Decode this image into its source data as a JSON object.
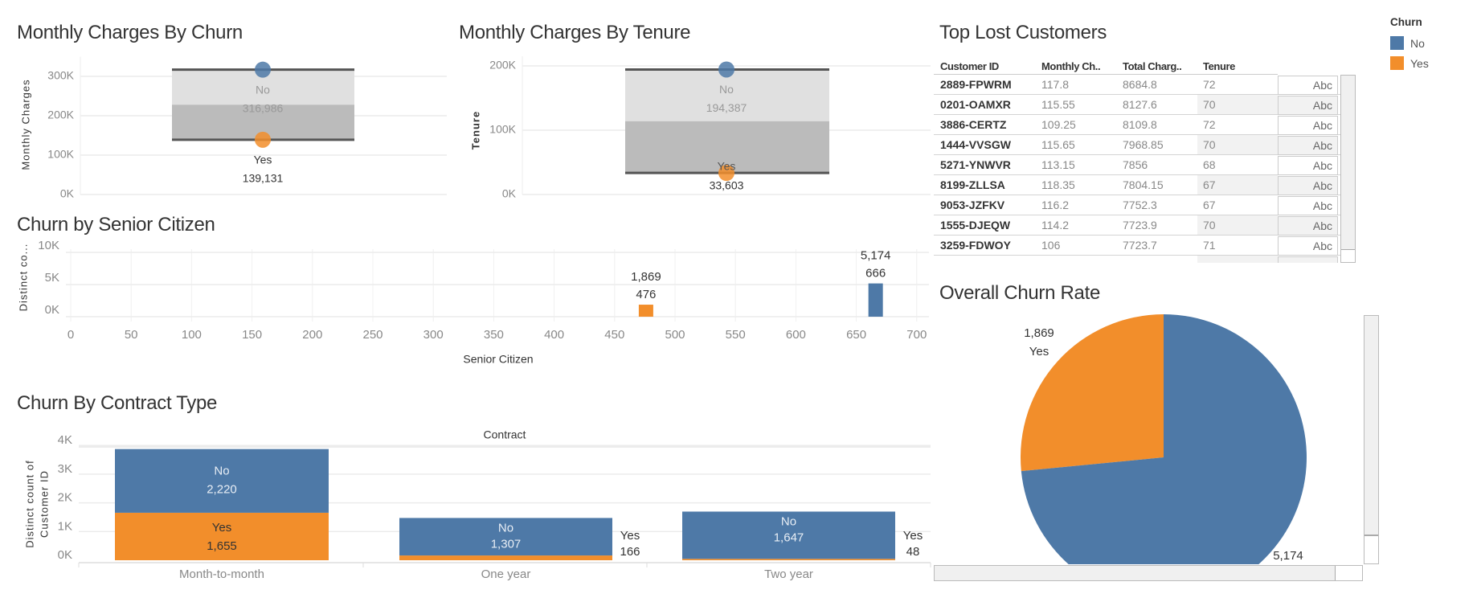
{
  "colors": {
    "no": "#4e79a7",
    "yes": "#f28e2b",
    "band_light": "#e0e0e0",
    "band_dark": "#bbbbbb",
    "band_line": "#555555",
    "grid": "#ececec"
  },
  "legend": {
    "title": "Churn",
    "items": [
      {
        "label": "No",
        "color": "#4e79a7"
      },
      {
        "label": "Yes",
        "color": "#f28e2b"
      }
    ]
  },
  "table": {
    "title": "Top Lost Customers",
    "columns": [
      "Customer ID",
      "Monthly Ch..",
      "Total Charg..",
      "Tenure"
    ],
    "rows": [
      {
        "id": "2889-FPWRM",
        "monthly": "117.8",
        "total": "8684.8",
        "tenure": "72",
        "extra": "Abc"
      },
      {
        "id": "0201-OAMXR",
        "monthly": "115.55",
        "total": "8127.6",
        "tenure": "70",
        "extra": "Abc"
      },
      {
        "id": "3886-CERTZ",
        "monthly": "109.25",
        "total": "8109.8",
        "tenure": "72",
        "extra": "Abc"
      },
      {
        "id": "1444-VVSGW",
        "monthly": "115.65",
        "total": "7968.85",
        "tenure": "70",
        "extra": "Abc"
      },
      {
        "id": "5271-YNWVR",
        "monthly": "113.15",
        "total": "7856",
        "tenure": "68",
        "extra": "Abc"
      },
      {
        "id": "8199-ZLLSA",
        "monthly": "118.35",
        "total": "7804.15",
        "tenure": "67",
        "extra": "Abc"
      },
      {
        "id": "9053-JZFKV",
        "monthly": "116.2",
        "total": "7752.3",
        "tenure": "67",
        "extra": "Abc"
      },
      {
        "id": "1555-DJEQW",
        "monthly": "114.2",
        "total": "7723.9",
        "tenure": "70",
        "extra": "Abc"
      },
      {
        "id": "3259-FDWOY",
        "monthly": "106",
        "total": "7723.7",
        "tenure": "71",
        "extra": "Abc"
      }
    ]
  },
  "chart_data": [
    {
      "type": "scatter",
      "title": "Monthly Charges By Churn",
      "ylabel": "Monthly Charges",
      "ylim": [
        0,
        350000
      ],
      "yticks": [
        {
          "v": 0,
          "label": "0K"
        },
        {
          "v": 100000,
          "label": "100K"
        },
        {
          "v": 200000,
          "label": "200K"
        },
        {
          "v": 300000,
          "label": "300K"
        }
      ],
      "points": [
        {
          "churn": "No",
          "value": 316986,
          "value_label": "316,986"
        },
        {
          "churn": "Yes",
          "value": 139131,
          "value_label": "139,131"
        }
      ],
      "reference_band": {
        "from": 139131,
        "median": 228058,
        "to": 316986
      },
      "grid": true
    },
    {
      "type": "scatter",
      "title": "Monthly Charges By Tenure",
      "ylabel": "Tenure",
      "ylim": [
        0,
        215000
      ],
      "yticks": [
        {
          "v": 0,
          "label": "0K"
        },
        {
          "v": 100000,
          "label": "100K"
        },
        {
          "v": 200000,
          "label": "200K"
        }
      ],
      "points": [
        {
          "churn": "No",
          "value": 194387,
          "value_label": "194,387"
        },
        {
          "churn": "Yes",
          "value": 33603,
          "value_label": "33,603"
        }
      ],
      "reference_band": {
        "from": 33603,
        "median": 113995,
        "to": 194387
      },
      "grid": true
    },
    {
      "type": "bar",
      "title": "Churn by Senior Citizen",
      "xlabel": "Senior Citizen",
      "ylabel": "Distinct co...",
      "xlim": [
        0,
        710
      ],
      "ylim": [
        0,
        10500
      ],
      "xticks": [
        0,
        50,
        100,
        150,
        200,
        250,
        300,
        350,
        400,
        450,
        500,
        550,
        600,
        650,
        700
      ],
      "yticks": [
        {
          "v": 0,
          "label": "0K"
        },
        {
          "v": 5000,
          "label": "5K"
        },
        {
          "v": 10000,
          "label": "10K"
        }
      ],
      "bars": [
        {
          "churn": "Yes",
          "x": 476,
          "x_label": "476",
          "value": 1869,
          "value_label": "1,869"
        },
        {
          "churn": "No",
          "x": 666,
          "x_label": "666",
          "value": 5174,
          "value_label": "5,174"
        }
      ],
      "grid": true
    },
    {
      "type": "bar",
      "stacked": true,
      "title": "Churn By Contract Type",
      "column_header": "Contract",
      "ylabel": "Distinct count of Customer ID",
      "ylim": [
        0,
        4200
      ],
      "yticks": [
        {
          "v": 0,
          "label": "0K"
        },
        {
          "v": 1000,
          "label": "1K"
        },
        {
          "v": 2000,
          "label": "2K"
        },
        {
          "v": 3000,
          "label": "3K"
        },
        {
          "v": 4000,
          "label": "4K"
        }
      ],
      "categories": [
        "Month-to-month",
        "One year",
        "Two year"
      ],
      "series": [
        {
          "name": "Yes",
          "values": [
            1655,
            166,
            48
          ],
          "labels": [
            "1,655",
            "166",
            "48"
          ]
        },
        {
          "name": "No",
          "values": [
            2220,
            1307,
            1647
          ],
          "labels": [
            "2,220",
            "1,307",
            "1,647"
          ]
        }
      ],
      "grid": true
    },
    {
      "type": "pie",
      "title": "Overall Churn Rate",
      "slices": [
        {
          "label": "Yes",
          "value": 1869,
          "value_label": "1,869"
        },
        {
          "label": "No",
          "value": 5174,
          "value_label": "5,174"
        }
      ]
    }
  ]
}
